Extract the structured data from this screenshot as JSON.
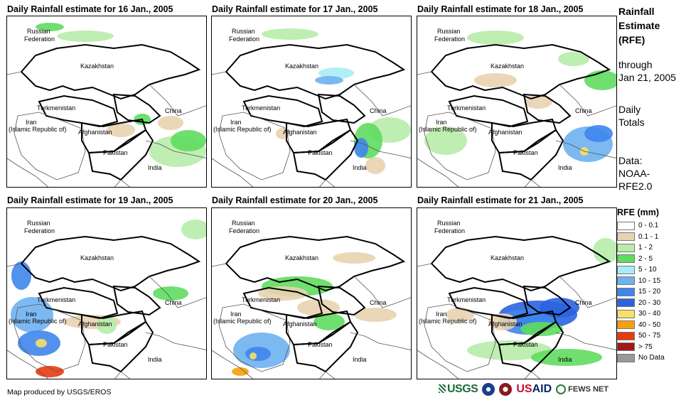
{
  "panels": [
    {
      "title": "Daily Rainfall estimate for 16 Jan., 2005"
    },
    {
      "title": "Daily Rainfall estimate for 17 Jan., 2005"
    },
    {
      "title": "Daily Rainfall estimate for 18 Jan., 2005"
    },
    {
      "title": "Daily Rainfall estimate for 19 Jan., 2005"
    },
    {
      "title": "Daily Rainfall estimate for 20 Jan., 2005"
    },
    {
      "title": "Daily Rainfall estimate for 21 Jan., 2005"
    }
  ],
  "countries": {
    "russia_l1": "Russian",
    "russia_l2": "Federation",
    "kazakhstan": "Kazakhstan",
    "turkmenistan": "Turkmenistan",
    "iran_l1": "Iran",
    "iran_l2": "(Islamic Republic of)",
    "afghanistan": "Afghanistan",
    "pakistan": "Pakistan",
    "china": "China",
    "india": "India"
  },
  "side": {
    "title_l1": "Rainfall",
    "title_l2": "Estimate",
    "title_l3": "(RFE)",
    "through_l1": "through",
    "through_l2": "Jan 21, 2005",
    "totals_l1": "Daily",
    "totals_l2": "Totals",
    "data_l1": "Data:",
    "data_l2": "NOAA-",
    "data_l3": "RFE2.0"
  },
  "legend": {
    "title": "RFE (mm)",
    "items": [
      {
        "label": "0 - 0.1",
        "color": "#ffffff"
      },
      {
        "label": "0.1 - 1",
        "color": "#e8d3b0"
      },
      {
        "label": "1 - 2",
        "color": "#b7eca9"
      },
      {
        "label": "2 - 5",
        "color": "#5fdc5f"
      },
      {
        "label": "5 - 10",
        "color": "#a8ecf6"
      },
      {
        "label": "10 - 15",
        "color": "#6fb1ef"
      },
      {
        "label": "15 - 20",
        "color": "#3f86ec"
      },
      {
        "label": "20 - 30",
        "color": "#2a63e0"
      },
      {
        "label": "30 - 40",
        "color": "#f6e06a"
      },
      {
        "label": "40 - 50",
        "color": "#f5a10a"
      },
      {
        "label": "50 - 75",
        "color": "#e83a10"
      },
      {
        "label": "> 75",
        "color": "#a01818"
      },
      {
        "label": "No Data",
        "color": "#999999"
      }
    ]
  },
  "footer": {
    "credit": "Map produced by USGS/EROS",
    "logo_usgs": "USGS",
    "logo_usaid_u": "US",
    "logo_usaid_rest": "AID",
    "logo_fews": "FEWS NET"
  }
}
